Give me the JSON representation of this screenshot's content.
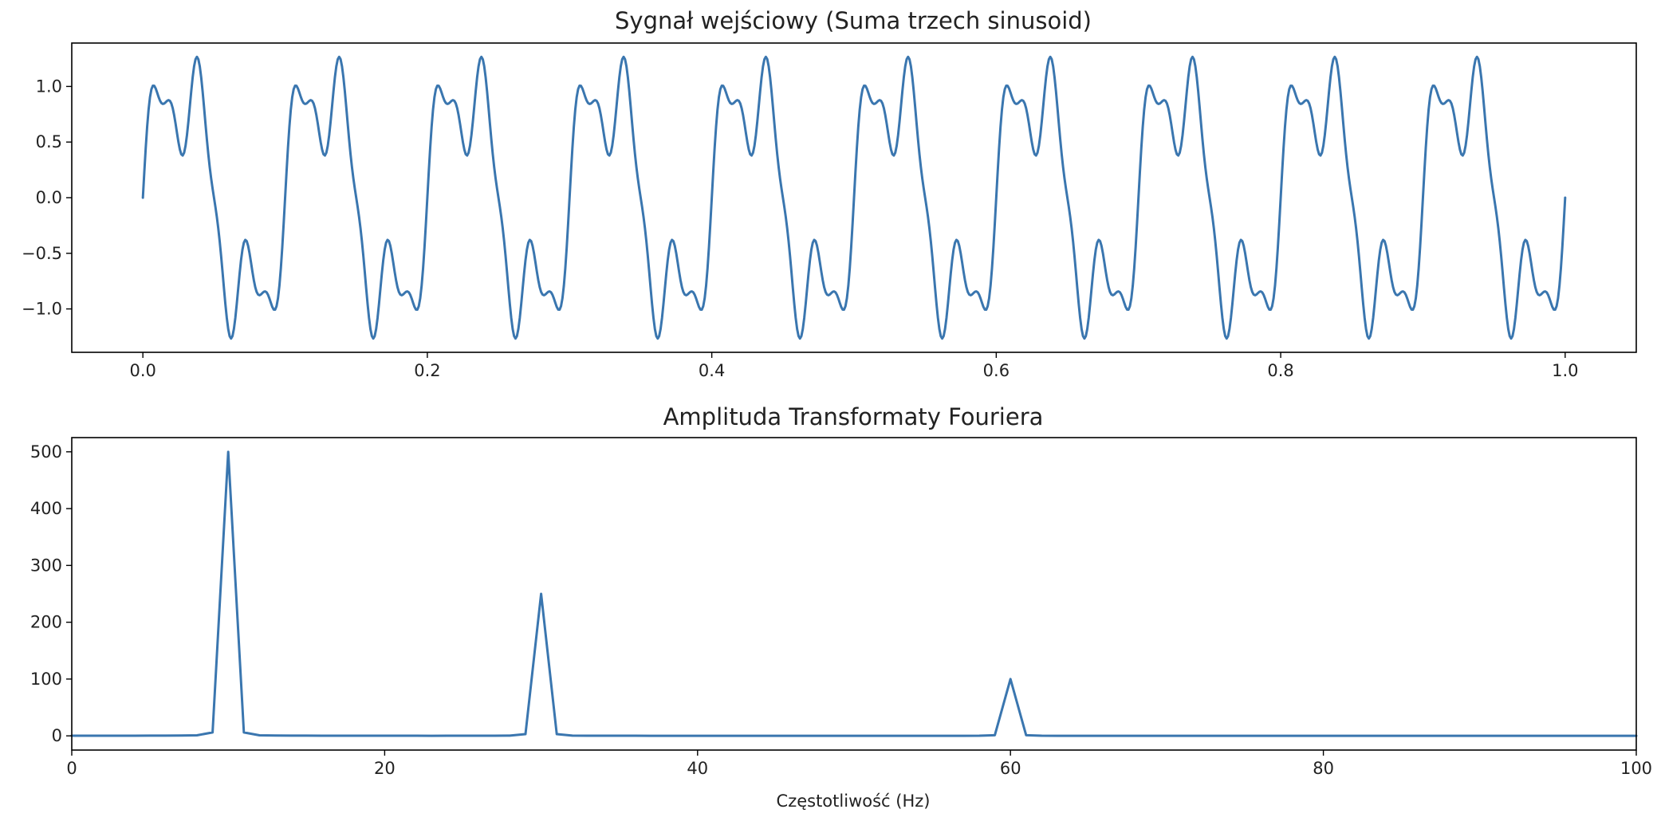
{
  "chart_data": [
    {
      "type": "line",
      "title": "Sygnał wejściowy (Suma trzech sinusoid)",
      "xlabel": "",
      "ylabel": "",
      "xlim": [
        -0.05,
        1.05
      ],
      "ylim": [
        -1.39,
        1.39
      ],
      "xticks": [
        0.0,
        0.2,
        0.4,
        0.6,
        0.8,
        1.0
      ],
      "xtick_labels": [
        "0.0",
        "0.2",
        "0.4",
        "0.6",
        "0.8",
        "1.0"
      ],
      "yticks": [
        1.0,
        0.5,
        0.0,
        -0.5,
        -1.0
      ],
      "ytick_labels": [
        "1.0",
        "0.5",
        "0.0",
        "−0.5",
        "−1.0"
      ],
      "grid": false,
      "series": [
        {
          "color": "#3a76af",
          "components": [
            {
              "amplitude": 1.0,
              "frequency_hz": 10
            },
            {
              "amplitude": 0.5,
              "frequency_hz": 30
            },
            {
              "amplitude": 0.2,
              "frequency_hz": 60
            }
          ],
          "x_range": [
            0,
            1
          ],
          "samples": 1000
        }
      ]
    },
    {
      "type": "line",
      "title": "Amplituda Transformaty Fouriera",
      "xlabel": "Częstotliwość (Hz)",
      "ylabel": "",
      "xlim": [
        0,
        100
      ],
      "ylim": [
        -25,
        525
      ],
      "xticks": [
        0,
        20,
        40,
        60,
        80,
        100
      ],
      "xtick_labels": [
        "0",
        "20",
        "40",
        "60",
        "80",
        "100"
      ],
      "yticks": [
        500,
        400,
        300,
        200,
        100,
        0
      ],
      "ytick_labels": [
        "500",
        "400",
        "300",
        "200",
        "100",
        "0"
      ],
      "grid": false,
      "series": [
        {
          "color": "#3a76af",
          "peaks": [
            {
              "x": 10,
              "y": 500
            },
            {
              "x": 30,
              "y": 250
            },
            {
              "x": 60,
              "y": 100
            }
          ],
          "x_range": [
            0,
            100
          ],
          "baseline": 0
        }
      ]
    }
  ]
}
